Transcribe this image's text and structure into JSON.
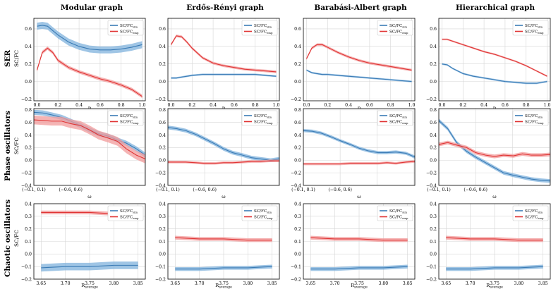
{
  "column_titles": [
    "Modular graph",
    "Erdős-Rényi graph",
    "Barabási-Albert graph",
    "Hierarchical graph"
  ],
  "row_titles": [
    {
      "main": "SER",
      "sub": "SC/FC"
    },
    {
      "main": "Phase oscillators",
      "sub": "SC/FC"
    },
    {
      "main": "Chaotic oscillators",
      "sub": "SC/FC"
    }
  ],
  "colors": {
    "sim": "#3a7bb5",
    "emp": "#e03434",
    "sim_band": "#7fb1dc",
    "emp_band": "#f29b9b",
    "grid": "#d6d6d6"
  },
  "chart_data": [
    {
      "row": 0,
      "type": "line",
      "xlabel": "p",
      "ylabel": "SC/FC",
      "xlim": [
        -0.03,
        1.03
      ],
      "ylim": [
        -0.22,
        0.72
      ],
      "xticks": [
        0.0,
        0.2,
        0.4,
        0.6,
        0.8,
        1.0
      ],
      "xtick_labels": [
        "0.0",
        "0.2",
        "0.4",
        "0.6",
        "0.8",
        "1.0"
      ],
      "yticks": [
        -0.2,
        0.0,
        0.2,
        0.4,
        0.6
      ],
      "ytick_labels": [
        "−0.2",
        "0.0",
        "0.2",
        "0.4",
        "0.6"
      ],
      "legend": {
        "position": "top-right",
        "entries": [
          {
            "base": "SC/FC",
            "sub": "sim"
          },
          {
            "base": "SC/FC",
            "sub": "emp"
          }
        ]
      },
      "x": [
        0.0,
        0.05,
        0.1,
        0.15,
        0.2,
        0.3,
        0.4,
        0.5,
        0.6,
        0.7,
        0.8,
        0.9,
        1.0
      ],
      "panels": [
        {
          "title_index": 0,
          "series": [
            {
              "key": "sim",
              "values": [
                0.63,
                0.64,
                0.63,
                0.58,
                0.53,
                0.45,
                0.4,
                0.37,
                0.36,
                0.36,
                0.37,
                0.39,
                0.42
              ],
              "band": 0.04
            },
            {
              "key": "emp",
              "values": [
                0.13,
                0.33,
                0.38,
                0.33,
                0.24,
                0.16,
                0.11,
                0.07,
                0.03,
                0.0,
                -0.04,
                -0.09,
                -0.17
              ],
              "band": 0.02
            }
          ]
        },
        {
          "title_index": 1,
          "series": [
            {
              "key": "sim",
              "values": [
                0.04,
                0.04,
                0.05,
                0.06,
                0.07,
                0.08,
                0.08,
                0.08,
                0.08,
                0.08,
                0.08,
                0.07,
                0.06
              ],
              "band": 0.01
            },
            {
              "key": "emp",
              "values": [
                0.42,
                0.52,
                0.51,
                0.45,
                0.38,
                0.27,
                0.21,
                0.18,
                0.16,
                0.14,
                0.13,
                0.12,
                0.11
              ],
              "band": 0.015
            }
          ]
        },
        {
          "title_index": 2,
          "series": [
            {
              "key": "sim",
              "values": [
                0.13,
                0.1,
                0.09,
                0.08,
                0.08,
                0.07,
                0.06,
                0.05,
                0.04,
                0.03,
                0.02,
                0.01,
                0.0
              ],
              "band": 0.01
            },
            {
              "key": "emp",
              "values": [
                0.26,
                0.38,
                0.42,
                0.42,
                0.39,
                0.33,
                0.28,
                0.24,
                0.21,
                0.19,
                0.17,
                0.15,
                0.13
              ],
              "band": 0.015
            }
          ]
        },
        {
          "title_index": 3,
          "series": [
            {
              "key": "sim",
              "values": [
                0.2,
                0.19,
                0.15,
                0.12,
                0.09,
                0.06,
                0.04,
                0.02,
                0.0,
                -0.01,
                -0.02,
                -0.02,
                0.0
              ],
              "band": 0.01
            },
            {
              "key": "emp",
              "values": [
                0.48,
                0.48,
                0.46,
                0.44,
                0.42,
                0.38,
                0.34,
                0.31,
                0.27,
                0.23,
                0.18,
                0.12,
                0.06
              ],
              "band": 0.01
            }
          ]
        }
      ]
    },
    {
      "row": 1,
      "type": "line",
      "xlabel": "ω",
      "ylabel": "SC/FC",
      "xlim": [
        0,
        1
      ],
      "ylim": [
        -0.4,
        0.82
      ],
      "xticks": [
        0.0,
        0.33
      ],
      "xtick_labels": [
        "(−0.1, 0.1)",
        "(−0.6, 0.6)"
      ],
      "yticks": [
        -0.4,
        -0.2,
        0.0,
        0.2,
        0.4,
        0.6,
        0.8
      ],
      "ytick_labels": [
        "−0.4",
        "−0.2",
        "0.0",
        "0.2",
        "0.4",
        "0.6",
        "0.8"
      ],
      "legend": {
        "position": "top-right",
        "entries": [
          {
            "base": "SC/FC",
            "sub": "sim"
          },
          {
            "base": "SC/FC",
            "sub": "emp"
          }
        ]
      },
      "x": [
        0.0,
        0.08,
        0.16,
        0.25,
        0.33,
        0.42,
        0.5,
        0.58,
        0.67,
        0.75,
        0.83,
        0.92,
        1.0
      ],
      "panels": [
        {
          "title_index": 0,
          "series": [
            {
              "key": "sim",
              "values": [
                0.76,
                0.75,
                0.72,
                0.68,
                0.62,
                0.55,
                0.48,
                0.42,
                0.38,
                0.32,
                0.27,
                0.18,
                0.08
              ],
              "band": 0.04
            },
            {
              "key": "emp",
              "values": [
                0.64,
                0.63,
                0.62,
                0.62,
                0.58,
                0.55,
                0.48,
                0.4,
                0.35,
                0.3,
                0.18,
                0.08,
                0.02
              ],
              "band": 0.07
            }
          ]
        },
        {
          "title_index": 1,
          "series": [
            {
              "key": "sim",
              "values": [
                0.52,
                0.5,
                0.47,
                0.41,
                0.34,
                0.26,
                0.18,
                0.12,
                0.08,
                0.04,
                0.02,
                0.0,
                0.02
              ],
              "band": 0.03
            },
            {
              "key": "emp",
              "values": [
                -0.03,
                -0.03,
                -0.03,
                -0.04,
                -0.05,
                -0.05,
                -0.04,
                -0.04,
                -0.03,
                -0.02,
                -0.02,
                -0.01,
                -0.01
              ],
              "band": 0.02
            }
          ]
        },
        {
          "title_index": 2,
          "series": [
            {
              "key": "sim",
              "values": [
                0.47,
                0.46,
                0.43,
                0.37,
                0.31,
                0.25,
                0.19,
                0.15,
                0.12,
                0.12,
                0.13,
                0.11,
                0.05
              ],
              "band": 0.025
            },
            {
              "key": "emp",
              "values": [
                -0.06,
                -0.06,
                -0.06,
                -0.06,
                -0.06,
                -0.05,
                -0.05,
                -0.05,
                -0.05,
                -0.04,
                -0.05,
                -0.03,
                -0.02
              ],
              "band": 0.02
            }
          ]
        },
        {
          "title_index": 3,
          "series": [
            {
              "key": "sim",
              "values": [
                0.63,
                0.5,
                0.28,
                0.14,
                0.05,
                -0.04,
                -0.12,
                -0.2,
                -0.24,
                -0.27,
                -0.3,
                -0.32,
                -0.33
              ],
              "band": 0.03
            },
            {
              "key": "emp",
              "values": [
                0.25,
                0.28,
                0.24,
                0.2,
                0.12,
                0.08,
                0.06,
                0.08,
                0.07,
                0.1,
                0.08,
                0.08,
                0.09
              ],
              "band": 0.03
            }
          ]
        }
      ]
    },
    {
      "row": 2,
      "type": "line",
      "xlabel": "R",
      "xlabel_sub": "average",
      "ylabel": "SC/FC",
      "xlim": [
        3.635,
        3.865
      ],
      "ylim": [
        -0.2,
        0.4
      ],
      "xticks": [
        3.65,
        3.7,
        3.75,
        3.8,
        3.85
      ],
      "xtick_labels": [
        "3.65",
        "3.70",
        "3.75",
        "3.80",
        "3.85"
      ],
      "yticks": [
        -0.2,
        -0.1,
        0.0,
        0.1,
        0.2,
        0.3,
        0.4
      ],
      "ytick_labels": [
        "−0.2",
        "−0.1",
        "0.0",
        "0.1",
        "0.2",
        "0.3",
        "0.4"
      ],
      "legend": {
        "position": "top-right",
        "entries": [
          {
            "base": "SC/FC",
            "sub": "sim"
          },
          {
            "base": "SC/FC",
            "sub": "emp"
          }
        ]
      },
      "x": [
        3.65,
        3.7,
        3.75,
        3.8,
        3.85
      ],
      "panels": [
        {
          "title_index": 0,
          "series": [
            {
              "key": "sim",
              "values": [
                -0.11,
                -0.1,
                -0.1,
                -0.09,
                -0.09
              ],
              "band": 0.03
            },
            {
              "key": "emp",
              "values": [
                0.33,
                0.33,
                0.33,
                0.32,
                0.32
              ],
              "band": 0.015
            }
          ]
        },
        {
          "title_index": 1,
          "series": [
            {
              "key": "sim",
              "values": [
                -0.12,
                -0.12,
                -0.11,
                -0.11,
                -0.1
              ],
              "band": 0.015
            },
            {
              "key": "emp",
              "values": [
                0.13,
                0.12,
                0.12,
                0.11,
                0.11
              ],
              "band": 0.015
            }
          ]
        },
        {
          "title_index": 2,
          "series": [
            {
              "key": "sim",
              "values": [
                -0.12,
                -0.12,
                -0.11,
                -0.11,
                -0.1
              ],
              "band": 0.015
            },
            {
              "key": "emp",
              "values": [
                0.13,
                0.12,
                0.12,
                0.11,
                0.11
              ],
              "band": 0.015
            }
          ]
        },
        {
          "title_index": 3,
          "series": [
            {
              "key": "sim",
              "values": [
                -0.12,
                -0.12,
                -0.11,
                -0.11,
                -0.1
              ],
              "band": 0.015
            },
            {
              "key": "emp",
              "values": [
                0.13,
                0.12,
                0.12,
                0.11,
                0.11
              ],
              "band": 0.015
            }
          ]
        }
      ]
    }
  ]
}
